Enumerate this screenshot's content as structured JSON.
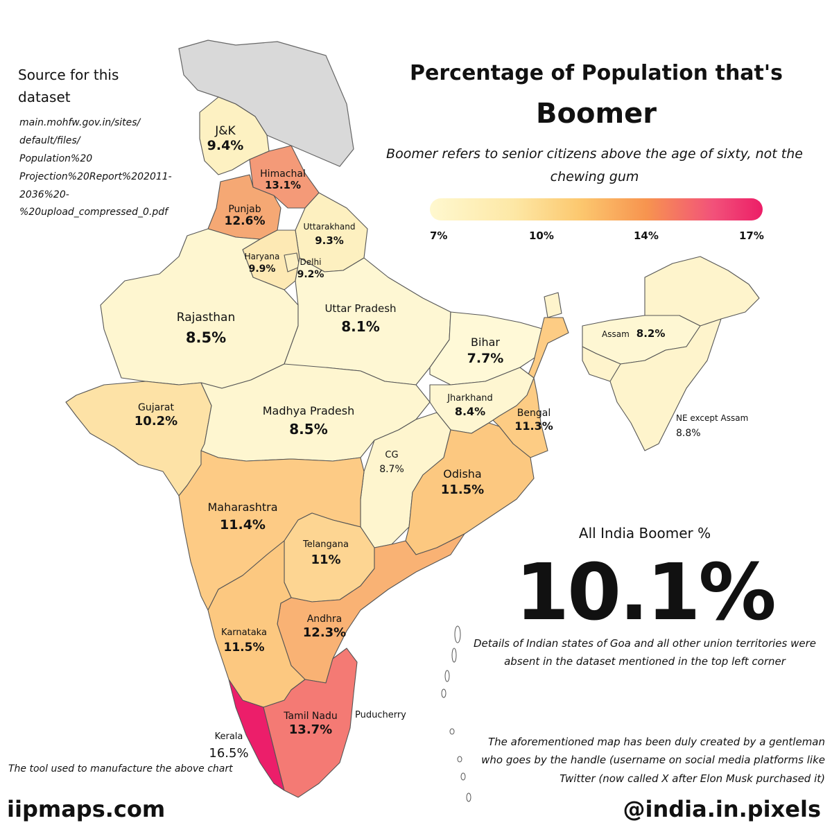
{
  "title_line1": "Percentage of Population that's",
  "title_line2": "Boomer",
  "subtitle": "Boomer refers to senior citizens above the age of sixty, not the chewing gum",
  "legend": {
    "ticks": [
      "7%",
      "10%",
      "14%",
      "17%"
    ],
    "colors": [
      "#fff8cf",
      "#fde8a6",
      "#fcc86f",
      "#f7944f",
      "#f2527a",
      "#ec1e67"
    ]
  },
  "source": {
    "heading": "Source for this dataset",
    "url": "main.mohfw.gov.in/sites/\ndefault/files/\nPopulation%20\nProjection%20Report%202011-\n2036%20-\n%20upload_compressed_0.pdf"
  },
  "states": {
    "jk": {
      "name": "J&K",
      "value": "9.4%",
      "color": "#fdf1c2"
    },
    "himachal": {
      "name": "Himachal",
      "value": "13.1%",
      "color": "#f49a78"
    },
    "punjab": {
      "name": "Punjab",
      "value": "12.6%",
      "color": "#f5a874"
    },
    "uttarakhand": {
      "name": "Uttarakhand",
      "value": "9.3%",
      "color": "#fdf0c0"
    },
    "haryana": {
      "name": "Haryana",
      "value": "9.9%",
      "color": "#fde9b4"
    },
    "delhi": {
      "name": "Delhi",
      "value": "9.2%",
      "color": "#fdf0c2"
    },
    "rajasthan": {
      "name": "Rajasthan",
      "value": "8.5%",
      "color": "#fef6d0"
    },
    "up": {
      "name": "Uttar Pradesh",
      "value": "8.1%",
      "color": "#fef7d3"
    },
    "bihar": {
      "name": "Bihar",
      "value": "7.7%",
      "color": "#fff9d7"
    },
    "assam": {
      "name": "Assam",
      "value": "8.2%",
      "color": "#fef7d3"
    },
    "gujarat": {
      "name": "Gujarat",
      "value": "10.2%",
      "color": "#fde2a6"
    },
    "mp": {
      "name": "Madhya Pradesh",
      "value": "8.5%",
      "color": "#fef6d0"
    },
    "jharkhand": {
      "name": "Jharkhand",
      "value": "8.4%",
      "color": "#fef6d1"
    },
    "bengal": {
      "name": "Bengal",
      "value": "11.3%",
      "color": "#fdcc84"
    },
    "ne": {
      "name": "NE except Assam",
      "value": "8.8%",
      "color": "#fef4cc"
    },
    "cg": {
      "name": "CG",
      "value": "8.7%",
      "color": "#fef5ce"
    },
    "odisha": {
      "name": "Odisha",
      "value": "11.5%",
      "color": "#fcc880"
    },
    "maharashtra": {
      "name": "Maharashtra",
      "value": "11.4%",
      "color": "#fdcb85"
    },
    "telangana": {
      "name": "Telangana",
      "value": "11%",
      "color": "#fdd592"
    },
    "andhra": {
      "name": "Andhra",
      "value": "12.3%",
      "color": "#f9b274"
    },
    "karnataka": {
      "name": "Karnataka",
      "value": "11.5%",
      "color": "#fcc880"
    },
    "kerala": {
      "name": "Kerala",
      "value": "16.5%",
      "color": "#ec1e6a"
    },
    "tn": {
      "name": "Tamil Nadu",
      "value": "13.7%",
      "color": "#f47a74"
    },
    "puducherry": {
      "name": "Puducherry"
    }
  },
  "all_india": {
    "label": "All India Boomer %",
    "value": "10.1%"
  },
  "note_absent": "Details of Indian states of Goa and all other union territories were absent in the dataset mentioned in the top left corner",
  "note_creator": "The aforementioned map has been duly created by a gentleman who goes by the handle (username on social media platforms like Twitter (now called X after Elon Musk purchased it)",
  "tool_note": "The tool used to manufacture the above chart",
  "site": "iipmaps.com",
  "handle": "@india.in.pixels",
  "no_data_color": "#d9d9d9"
}
